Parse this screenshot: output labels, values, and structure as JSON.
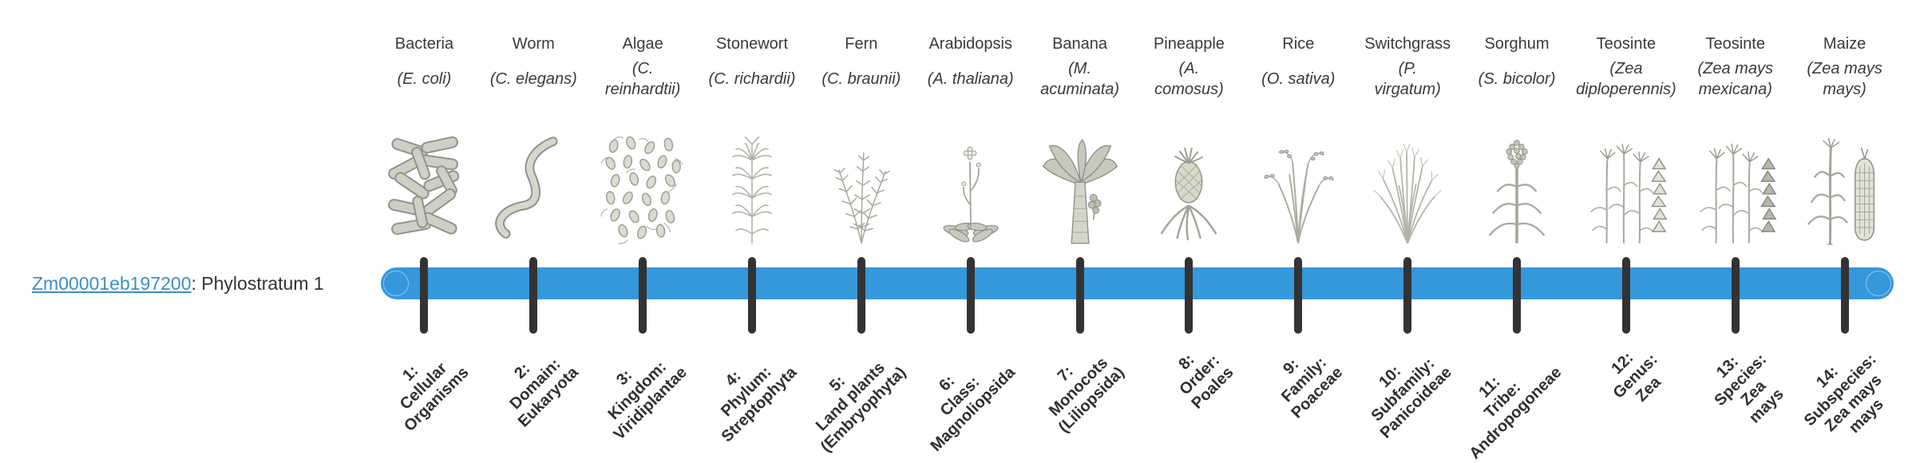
{
  "gene_label": {
    "gene_id": "Zm00001eb197200",
    "suffix": ": Phylostratum 1",
    "link_color": "#3E8EC6"
  },
  "timeline": {
    "bar_color": "#3498DB",
    "tick_color": "#333333",
    "tick_count": 14
  },
  "organisms": [
    {
      "name": "Bacteria",
      "sci": "(E. coli)",
      "icon": "bacteria-icon",
      "stratum": "1:\nCellular\nOrganisms"
    },
    {
      "name": "Worm",
      "sci": "(C. elegans)",
      "icon": "worm-icon",
      "stratum": "2:\nDomain:\nEukaryota"
    },
    {
      "name": "Algae",
      "sci": "(C.\nreinhardtii)",
      "icon": "algae-icon",
      "stratum": "3:\nKingdom:\nViridiplantae"
    },
    {
      "name": "Stonewort",
      "sci": "(C. richardii)",
      "icon": "stonewort-icon",
      "stratum": "4:\nPhylum:\nStreptophyta"
    },
    {
      "name": "Fern",
      "sci": "(C. braunii)",
      "icon": "fern-icon",
      "stratum": "5:\nLand plants\n(Embryophyta)"
    },
    {
      "name": "Arabidopsis",
      "sci": "(A. thaliana)",
      "icon": "arabidopsis-icon",
      "stratum": "6:\nClass:\nMagnoliopsida"
    },
    {
      "name": "Banana",
      "sci": "(M.\nacuminata)",
      "icon": "banana-icon",
      "stratum": "7:\nMonocots\n(Liliopsida)"
    },
    {
      "name": "Pineapple",
      "sci": "(A.\ncomosus)",
      "icon": "pineapple-icon",
      "stratum": "8:\nOrder:\nPoales"
    },
    {
      "name": "Rice",
      "sci": "(O. sativa)",
      "icon": "rice-icon",
      "stratum": "9:\nFamily:\nPoaceae"
    },
    {
      "name": "Switchgrass",
      "sci": "(P.\nvirgatum)",
      "icon": "switchgrass-icon",
      "stratum": "10:\nSubfamily:\nPanicoideae"
    },
    {
      "name": "Sorghum",
      "sci": "(S. bicolor)",
      "icon": "sorghum-icon",
      "stratum": "11:\nTribe:\nAndropogoneae"
    },
    {
      "name": "Teosinte",
      "sci": "(Zea\ndiploperennis)",
      "icon": "teosinte-icon",
      "stratum": "12:\nGenus:\nZea"
    },
    {
      "name": "Teosinte",
      "sci": "(Zea mays\nmexicana)",
      "icon": "teosinte-mexicana-icon",
      "stratum": "13:\nSpecies:\nZea\nmays"
    },
    {
      "name": "Maize",
      "sci": "(Zea mays\nmays)",
      "icon": "maize-icon",
      "stratum": "14:\nSubspecies:\nZea mays\nmays"
    }
  ]
}
